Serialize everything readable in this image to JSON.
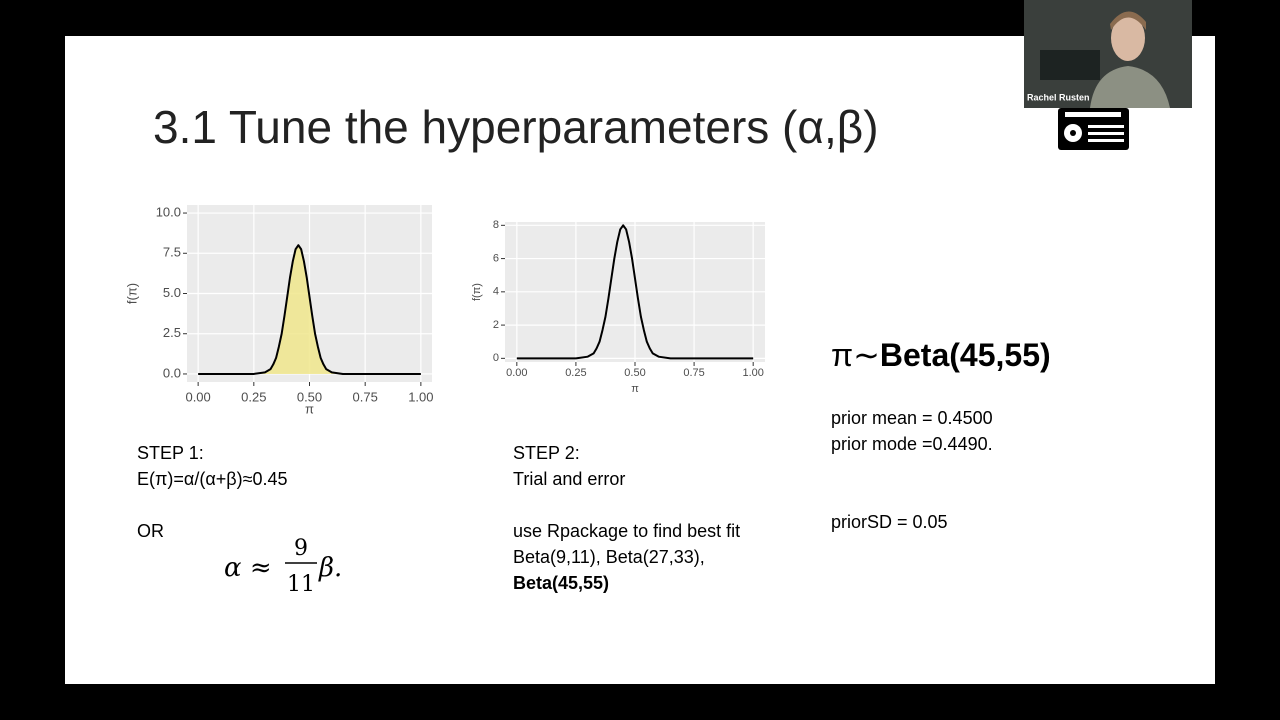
{
  "slide": {
    "title": "3.1 Tune the hyperparameters (α,β)",
    "plots": [
      {
        "xlabel": "π",
        "ylabel": "f(π)",
        "fill": "#f0e68c",
        "color": "#000000",
        "xlim": [
          -0.05,
          1.05
        ],
        "ylim": [
          -0.5,
          10.5
        ],
        "xticks": [
          {
            "value": 0,
            "label": "0.00"
          },
          0.25,
          {
            "value": 0.5,
            "label": "0.50"
          },
          0.75,
          {
            "value": 1,
            "label": "1.00"
          }
        ],
        "yticks": [
          {
            "value": 0,
            "label": "0.0"
          },
          2.5,
          {
            "value": 5,
            "label": "5.0"
          },
          7.5,
          {
            "value": 10,
            "label": "10.0"
          }
        ],
        "x": [
          0,
          0.25,
          0.3,
          0.3125,
          0.325,
          0.3375,
          0.35,
          0.3625,
          0.375,
          0.3875,
          0.4,
          0.4125,
          0.425,
          0.4375,
          0.45,
          0.4625,
          0.475,
          0.4875,
          0.5,
          0.5125,
          0.525,
          0.5375,
          0.55,
          0.5625,
          0.575,
          0.5875,
          0.6,
          0.65,
          1
        ],
        "values": [
          0,
          0,
          0.1,
          0.2,
          0.3,
          0.6,
          1.0,
          1.7,
          2.5,
          3.6,
          4.8,
          6.0,
          7.0,
          7.75,
          8.0,
          7.75,
          7.0,
          6.0,
          4.8,
          3.6,
          2.5,
          1.7,
          1.0,
          0.6,
          0.3,
          0.2,
          0.1,
          0,
          0
        ]
      },
      {
        "xlabel": "π",
        "ylabel": "f(π)",
        "color": "#000000",
        "xlim": [
          -0.05,
          1.05
        ],
        "ylim": [
          -0.22,
          8.2
        ],
        "xticks": [
          {
            "value": 0,
            "label": "0.00"
          },
          0.25,
          {
            "value": 0.5,
            "label": "0.50"
          },
          0.75,
          {
            "value": 1,
            "label": "1.00"
          }
        ],
        "yticks": [
          0,
          2,
          4,
          6,
          8
        ],
        "x": [
          0,
          0.25,
          0.3,
          0.3125,
          0.325,
          0.3375,
          0.35,
          0.3625,
          0.375,
          0.3875,
          0.4,
          0.4125,
          0.425,
          0.4375,
          0.45,
          0.4625,
          0.475,
          0.4875,
          0.5,
          0.5125,
          0.525,
          0.5375,
          0.55,
          0.5625,
          0.575,
          0.5875,
          0.6,
          0.65,
          1
        ],
        "values": [
          0,
          0,
          0.1,
          0.2,
          0.3,
          0.6,
          1.0,
          1.7,
          2.5,
          3.6,
          4.8,
          6.0,
          7.0,
          7.75,
          8.0,
          7.75,
          7.0,
          6.0,
          4.8,
          3.6,
          2.5,
          1.7,
          1.0,
          0.6,
          0.3,
          0.2,
          0.1,
          0,
          0
        ]
      }
    ],
    "step1": {
      "heading": "STEP 1:",
      "equation": "E(π)=α/(α+β)≈0.45",
      "or": "OR",
      "formula": {
        "lhs": "α ≈",
        "numerator": "9",
        "denominator": "11",
        "rhs": "β."
      }
    },
    "step2": {
      "heading": "STEP 2:",
      "line1": "Trial and error",
      "line2": "use Rpackage to find best fit",
      "line3": "Beta(9,11), Beta(27,33),",
      "line4": "Beta(45,55)"
    },
    "result": {
      "prefix": "π∼",
      "distribution": "Beta(45,55)",
      "mean": "prior mean = 0.4500",
      "mode": "prior mode =0.4490.",
      "sd": "priorSD = 0.05"
    }
  },
  "webcam": {
    "name": "Rachel Rusten"
  }
}
